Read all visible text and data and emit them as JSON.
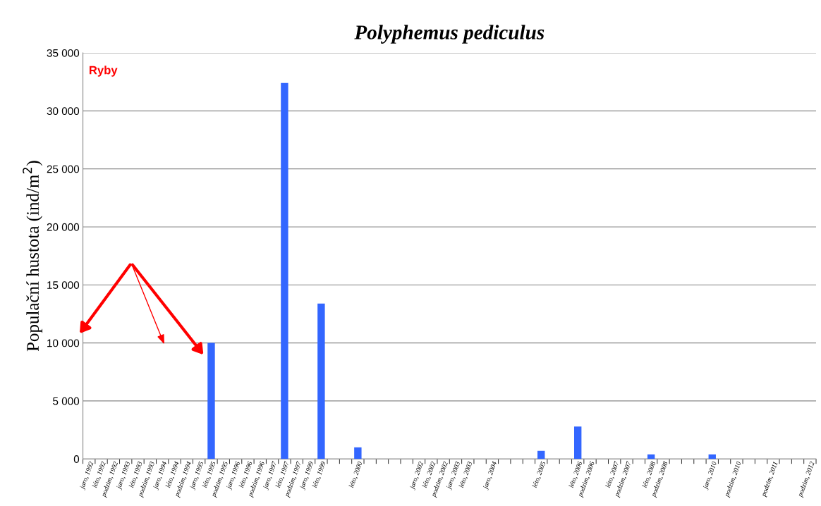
{
  "chart_data": {
    "type": "bar",
    "title": "Polyphemus pediculus",
    "ylabel": "Populační hustota (ind/m$^{2}$)",
    "categories": [
      "jaro, 1992",
      "léto, 1992",
      "podzim, 1992",
      "jaro, 1993",
      "léto, 1993",
      "podzim, 1993",
      "jaro, 1994",
      "léto, 1994",
      "podzim, 1994",
      "jaro, 1995",
      "léto, 1995",
      "podzim, 1995",
      "jaro, 1996",
      "léto, 1996",
      "podzim, 1996",
      "jaro, 1997",
      "léto, 1997",
      "podzim, 1997",
      "jaro, 1999",
      "léto, 1999",
      null,
      null,
      "léto, 2000",
      null,
      null,
      null,
      null,
      "jaro, 2002",
      "léto, 2002",
      "podzim, 2002",
      "jaro, 2003",
      "léto, 2003",
      null,
      "jaro, 2004",
      null,
      null,
      null,
      "léto, 2005",
      null,
      null,
      "léto, 2006",
      "podzim, 2006",
      null,
      "léto, 2007",
      "podzim, 2007",
      null,
      "léto, 2008",
      "podzim, 2008",
      null,
      null,
      null,
      "jaro, 2010",
      null,
      "podzim, 2010",
      null,
      null,
      "podzim, 2011",
      null,
      null,
      "podzim, 2012"
    ],
    "values": [
      0,
      0,
      0,
      0,
      0,
      0,
      0,
      0,
      0,
      0,
      10000,
      0,
      0,
      0,
      0,
      0,
      32400,
      0,
      0,
      13400,
      0,
      0,
      1000,
      0,
      0,
      0,
      0,
      0,
      0,
      0,
      0,
      0,
      0,
      0,
      0,
      0,
      0,
      700,
      0,
      0,
      2800,
      0,
      0,
      0,
      0,
      0,
      400,
      0,
      0,
      0,
      0,
      400,
      0,
      0,
      0,
      0,
      0,
      0,
      0,
      0
    ],
    "color": "#3366ff",
    "ylim": [
      0,
      35000
    ],
    "yticks": [
      0,
      {
        "value": 5000,
        "label": "5 000"
      },
      {
        "value": 10000,
        "label": "10 000"
      },
      {
        "value": 15000,
        "label": "15 000"
      },
      {
        "value": 20000,
        "label": "20 000"
      },
      {
        "value": 25000,
        "label": "25 000"
      },
      {
        "value": 30000,
        "label": "30 000"
      },
      {
        "value": 35000,
        "label": "35 000"
      }
    ],
    "grid": "y",
    "annotations": [
      "Ryby"
    ]
  }
}
